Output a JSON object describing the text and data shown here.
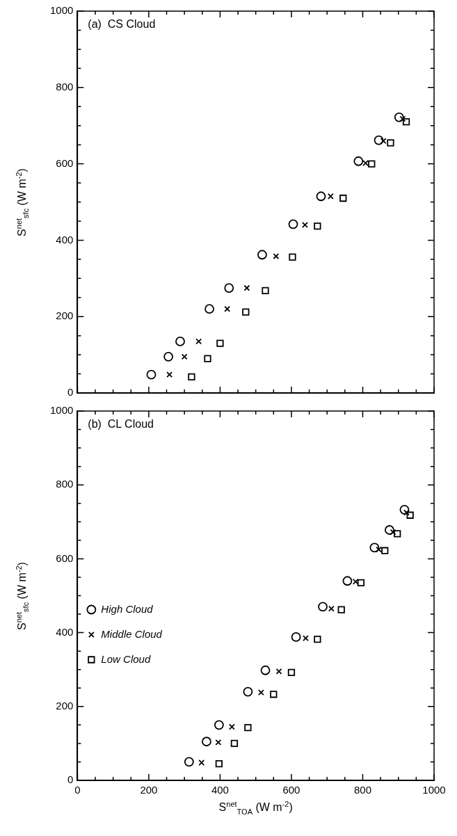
{
  "chart_data": [
    {
      "type": "scatter",
      "title": "(a)  CS Cloud",
      "ylabel": "S$^{net}$$_{sfc}$ (W m$^{-2}$)",
      "xlim": [
        0,
        1000
      ],
      "ylim": [
        0,
        1000
      ],
      "xticks": [
        0,
        {
          "value": 50,
          "label": null
        },
        {
          "value": 100,
          "label": null
        },
        {
          "value": 150,
          "label": null
        },
        200,
        {
          "value": 250,
          "label": null
        },
        {
          "value": 300,
          "label": null
        },
        {
          "value": 350,
          "label": null
        },
        400,
        {
          "value": 450,
          "label": null
        },
        {
          "value": 500,
          "label": null
        },
        {
          "value": 550,
          "label": null
        },
        600,
        {
          "value": 650,
          "label": null
        },
        {
          "value": 700,
          "label": null
        },
        {
          "value": 750,
          "label": null
        },
        800,
        {
          "value": 850,
          "label": null
        },
        {
          "value": 900,
          "label": null
        },
        {
          "value": 950,
          "label": null
        },
        1000
      ],
      "yticks": [
        0,
        {
          "value": 50,
          "label": null
        },
        {
          "value": 100,
          "label": null
        },
        {
          "value": 150,
          "label": null
        },
        200,
        {
          "value": 250,
          "label": null
        },
        {
          "value": 300,
          "label": null
        },
        {
          "value": 350,
          "label": null
        },
        400,
        {
          "value": 450,
          "label": null
        },
        {
          "value": 500,
          "label": null
        },
        {
          "value": 550,
          "label": null
        },
        600,
        {
          "value": 650,
          "label": null
        },
        {
          "value": 700,
          "label": null
        },
        {
          "value": 750,
          "label": null
        },
        800,
        {
          "value": 850,
          "label": null
        },
        {
          "value": 900,
          "label": null
        },
        {
          "value": 950,
          "label": null
        },
        1000
      ],
      "tick_labels": "y",
      "grid": false,
      "series": [
        {
          "color": "#000000",
          "marker": "circle",
          "x": [
            207,
            255,
            288,
            370,
            425,
            518,
            605,
            683,
            788,
            845,
            902
          ],
          "values": [
            48,
            95,
            135,
            220,
            275,
            362,
            442,
            515,
            607,
            662,
            722
          ]
        },
        {
          "color": "#000000",
          "marker": "cross",
          "x": [
            258,
            300,
            340,
            420,
            475,
            557,
            638,
            710,
            808,
            858,
            912
          ],
          "values": [
            48,
            95,
            135,
            220,
            275,
            358,
            440,
            515,
            602,
            660,
            718
          ]
        },
        {
          "color": "#000000",
          "marker": "square",
          "x": [
            320,
            365,
            400,
            472,
            527,
            603,
            673,
            745,
            825,
            878,
            922
          ],
          "values": [
            42,
            90,
            130,
            212,
            268,
            356,
            437,
            510,
            600,
            655,
            710
          ]
        }
      ]
    },
    {
      "type": "scatter",
      "title": "(b)  CL Cloud",
      "xlabel": "S$^{net}$$_{TOA}$ (W m$^{-2}$)",
      "ylabel": "S$^{net}$$_{sfc}$ (W m$^{-2}$)",
      "xlim": [
        0,
        1000
      ],
      "ylim": [
        0,
        1000
      ],
      "xticks": [
        0,
        {
          "value": 50,
          "label": null
        },
        {
          "value": 100,
          "label": null
        },
        {
          "value": 150,
          "label": null
        },
        200,
        {
          "value": 250,
          "label": null
        },
        {
          "value": 300,
          "label": null
        },
        {
          "value": 350,
          "label": null
        },
        400,
        {
          "value": 450,
          "label": null
        },
        {
          "value": 500,
          "label": null
        },
        {
          "value": 550,
          "label": null
        },
        600,
        {
          "value": 650,
          "label": null
        },
        {
          "value": 700,
          "label": null
        },
        {
          "value": 750,
          "label": null
        },
        800,
        {
          "value": 850,
          "label": null
        },
        {
          "value": 900,
          "label": null
        },
        {
          "value": 950,
          "label": null
        },
        1000
      ],
      "yticks": [
        0,
        {
          "value": 50,
          "label": null
        },
        {
          "value": 100,
          "label": null
        },
        {
          "value": 150,
          "label": null
        },
        200,
        {
          "value": 250,
          "label": null
        },
        {
          "value": 300,
          "label": null
        },
        {
          "value": 350,
          "label": null
        },
        400,
        {
          "value": 450,
          "label": null
        },
        {
          "value": 500,
          "label": null
        },
        {
          "value": 550,
          "label": null
        },
        600,
        {
          "value": 650,
          "label": null
        },
        {
          "value": 700,
          "label": null
        },
        {
          "value": 750,
          "label": null
        },
        800,
        {
          "value": 850,
          "label": null
        },
        {
          "value": 900,
          "label": null
        },
        {
          "value": 950,
          "label": null
        },
        1000
      ],
      "grid": false,
      "legend": "left",
      "series": [
        {
          "name": "High Cloud",
          "color": "#000000",
          "marker": "circle",
          "x": [
            313,
            362,
            397,
            478,
            527,
            613,
            688,
            757,
            833,
            875,
            917
          ],
          "values": [
            50,
            105,
            150,
            240,
            298,
            388,
            470,
            540,
            630,
            678,
            733
          ]
        },
        {
          "name": "Middle Cloud",
          "color": "#000000",
          "marker": "cross",
          "x": [
            348,
            395,
            433,
            515,
            565,
            640,
            712,
            780,
            845,
            885,
            923
          ],
          "values": [
            48,
            103,
            145,
            238,
            295,
            385,
            465,
            538,
            625,
            672,
            725
          ]
        },
        {
          "name": "Low Cloud",
          "color": "#000000",
          "marker": "square",
          "x": [
            397,
            440,
            478,
            550,
            600,
            673,
            740,
            795,
            862,
            897,
            933
          ],
          "values": [
            45,
            100,
            143,
            233,
            292,
            382,
            462,
            535,
            622,
            668,
            718
          ]
        }
      ]
    }
  ]
}
